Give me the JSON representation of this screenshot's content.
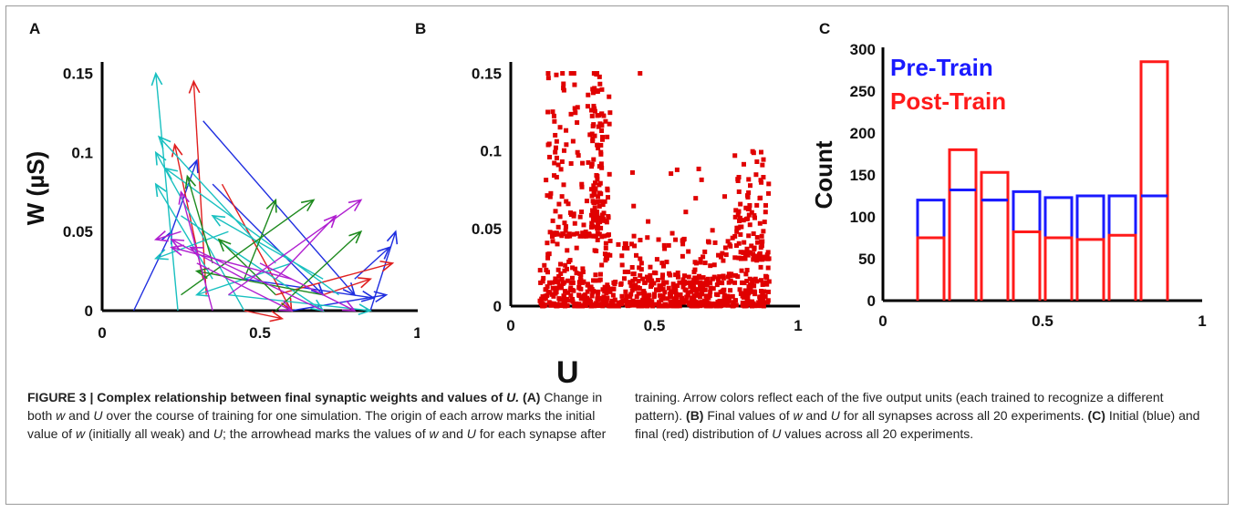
{
  "panels": {
    "a_label": "A",
    "b_label": "B",
    "c_label": "C"
  },
  "shared_xlabel": "U",
  "chart_data": [
    {
      "panel": "A",
      "type": "scatter",
      "ylabel": "W (µS)",
      "xlim": [
        0,
        1
      ],
      "ylim": [
        0,
        0.155
      ],
      "x_ticks": [
        "0",
        "0.5",
        "1"
      ],
      "y_ticks": [
        "0",
        "0.05",
        "0.1",
        "0.15"
      ],
      "arrows": [
        {
          "color": "#1f2ee0",
          "from": [
            0.1,
            0.0
          ],
          "to": [
            0.22,
            0.05
          ]
        },
        {
          "color": "#1f2ee0",
          "from": [
            0.22,
            0.05
          ],
          "to": [
            0.3,
            0.095
          ]
        },
        {
          "color": "#1f2ee0",
          "from": [
            0.85,
            0.0
          ],
          "to": [
            0.93,
            0.05
          ]
        },
        {
          "color": "#1f2ee0",
          "from": [
            0.8,
            0.02
          ],
          "to": [
            0.91,
            0.04
          ]
        },
        {
          "color": "#1f2ee0",
          "from": [
            0.6,
            0.0
          ],
          "to": [
            0.9,
            0.01
          ]
        },
        {
          "color": "#1f2ee0",
          "from": [
            0.45,
            0.02
          ],
          "to": [
            0.86,
            0.008
          ]
        },
        {
          "color": "#1f2ee0",
          "from": [
            0.32,
            0.12
          ],
          "to": [
            0.8,
            0.01
          ]
        },
        {
          "color": "#1f2ee0",
          "from": [
            0.35,
            0.08
          ],
          "to": [
            0.7,
            0.01
          ]
        },
        {
          "color": "#e01f1f",
          "from": [
            0.33,
            0.01
          ],
          "to": [
            0.29,
            0.145
          ]
        },
        {
          "color": "#e01f1f",
          "from": [
            0.32,
            0.02
          ],
          "to": [
            0.23,
            0.105
          ]
        },
        {
          "color": "#e01f1f",
          "from": [
            0.45,
            0.0
          ],
          "to": [
            0.57,
            -0.005
          ]
        },
        {
          "color": "#e01f1f",
          "from": [
            0.55,
            0.01
          ],
          "to": [
            0.92,
            0.03
          ]
        },
        {
          "color": "#e01f1f",
          "from": [
            0.38,
            0.08
          ],
          "to": [
            0.6,
            0.0
          ]
        },
        {
          "color": "#e01f1f",
          "from": [
            0.7,
            0.01
          ],
          "to": [
            0.85,
            0.02
          ]
        },
        {
          "color": "#19c0c0",
          "from": [
            0.24,
            0.0
          ],
          "to": [
            0.17,
            0.15
          ]
        },
        {
          "color": "#19c0c0",
          "from": [
            0.35,
            0.02
          ],
          "to": [
            0.17,
            0.08
          ]
        },
        {
          "color": "#19c0c0",
          "from": [
            0.4,
            0.05
          ],
          "to": [
            0.17,
            0.033
          ]
        },
        {
          "color": "#19c0c0",
          "from": [
            0.55,
            0.03
          ],
          "to": [
            0.18,
            0.11
          ]
        },
        {
          "color": "#19c0c0",
          "from": [
            0.45,
            0.0
          ],
          "to": [
            0.17,
            0.1
          ]
        },
        {
          "color": "#19c0c0",
          "from": [
            0.75,
            0.01
          ],
          "to": [
            0.2,
            0.09
          ]
        },
        {
          "color": "#19c0c0",
          "from": [
            0.7,
            0.02
          ],
          "to": [
            0.35,
            0.06
          ]
        },
        {
          "color": "#19c0c0",
          "from": [
            0.4,
            0.01
          ],
          "to": [
            0.85,
            0.0
          ]
        },
        {
          "color": "#19c0c0",
          "from": [
            0.25,
            0.06
          ],
          "to": [
            0.7,
            0.0
          ]
        },
        {
          "color": "#19c0c0",
          "from": [
            0.6,
            0.03
          ],
          "to": [
            0.3,
            0.01
          ]
        },
        {
          "color": "#1e8a1e",
          "from": [
            0.25,
            0.01
          ],
          "to": [
            0.67,
            0.07
          ]
        },
        {
          "color": "#1e8a1e",
          "from": [
            0.45,
            0.02
          ],
          "to": [
            0.55,
            0.07
          ]
        },
        {
          "color": "#1e8a1e",
          "from": [
            0.55,
            0.0
          ],
          "to": [
            0.82,
            0.05
          ]
        },
        {
          "color": "#1e8a1e",
          "from": [
            0.35,
            0.03
          ],
          "to": [
            0.27,
            0.085
          ]
        },
        {
          "color": "#1e8a1e",
          "from": [
            0.7,
            0.01
          ],
          "to": [
            0.3,
            0.025
          ]
        },
        {
          "color": "#1e8a1e",
          "from": [
            0.55,
            0.01
          ],
          "to": [
            0.37,
            0.045
          ]
        },
        {
          "color": "#b01fd0",
          "from": [
            0.25,
            0.05
          ],
          "to": [
            0.17,
            0.045
          ]
        },
        {
          "color": "#b01fd0",
          "from": [
            0.35,
            0.0
          ],
          "to": [
            0.25,
            0.075
          ]
        },
        {
          "color": "#b01fd0",
          "from": [
            0.45,
            0.02
          ],
          "to": [
            0.22,
            0.045
          ]
        },
        {
          "color": "#b01fd0",
          "from": [
            0.6,
            0.02
          ],
          "to": [
            0.22,
            0.04
          ]
        },
        {
          "color": "#b01fd0",
          "from": [
            0.7,
            0.0
          ],
          "to": [
            0.28,
            0.04
          ]
        },
        {
          "color": "#b01fd0",
          "from": [
            0.4,
            0.01
          ],
          "to": [
            0.82,
            0.07
          ]
        },
        {
          "color": "#b01fd0",
          "from": [
            0.55,
            0.02
          ],
          "to": [
            0.74,
            0.06
          ]
        },
        {
          "color": "#b01fd0",
          "from": [
            0.3,
            0.03
          ],
          "to": [
            0.6,
            0.0
          ]
        },
        {
          "color": "#b01fd0",
          "from": [
            0.5,
            0.03
          ],
          "to": [
            0.8,
            0.0
          ]
        }
      ]
    },
    {
      "panel": "B",
      "type": "scatter",
      "xlim": [
        0,
        1
      ],
      "ylim": [
        0,
        0.155
      ],
      "x_ticks": [
        "0",
        "0.5",
        "1"
      ],
      "y_ticks": [
        "0",
        "0.05",
        "0.1",
        "0.15"
      ],
      "color": "#e00000",
      "points_note": "",
      "clusters": [
        {
          "x_range": [
            0.1,
            0.9
          ],
          "y_range": [
            0.0,
            0.015
          ],
          "count": 520
        },
        {
          "x_range": [
            0.1,
            0.9
          ],
          "y_range": [
            0.015,
            0.045
          ],
          "count": 230
        },
        {
          "x_range": [
            0.12,
            0.35
          ],
          "y_range": [
            0.045,
            0.15
          ],
          "count": 140
        },
        {
          "x_range": [
            0.28,
            0.32
          ],
          "y_range": [
            0.05,
            0.15
          ],
          "count": 80
        },
        {
          "x_range": [
            0.78,
            0.9
          ],
          "y_range": [
            0.03,
            0.1
          ],
          "count": 90
        },
        {
          "x_range": [
            0.4,
            0.75
          ],
          "y_range": [
            0.04,
            0.09
          ],
          "count": 22
        }
      ],
      "extra_points": [
        [
          0.13,
          0.15
        ],
        [
          0.18,
          0.15
        ],
        [
          0.21,
          0.15
        ],
        [
          0.22,
          0.15
        ],
        [
          0.29,
          0.15
        ],
        [
          0.3,
          0.15
        ],
        [
          0.45,
          0.15
        ],
        [
          0.78,
          0.097
        ]
      ]
    },
    {
      "panel": "C",
      "type": "bar",
      "ylabel": "Count",
      "xlim": [
        0,
        1
      ],
      "ylim": [
        0,
        300
      ],
      "x_ticks": [
        "0",
        "0.5",
        "1"
      ],
      "y_ticks": [
        "0",
        "50",
        "100",
        "150",
        "200",
        "250",
        "300"
      ],
      "bin_edges": [
        0.1,
        0.2,
        0.3,
        0.4,
        0.5,
        0.6,
        0.7,
        0.8,
        0.9
      ],
      "series": [
        {
          "name": "Pre-Train",
          "color": "#1a1aff",
          "values": [
            120,
            132,
            120,
            130,
            123,
            125,
            125,
            125
          ]
        },
        {
          "name": "Post-Train",
          "color": "#ff1a1a",
          "values": [
            75,
            180,
            153,
            82,
            75,
            73,
            78,
            285
          ]
        }
      ]
    }
  ],
  "caption": {
    "figure_label": "FIGURE 3 | Complex relationship between final synaptic weights and values of ",
    "figure_label_u": "U.",
    "a_tag": "(A)",
    "a_text_1": " Change in both ",
    "w1": "w",
    "and1": " and ",
    "u1": "U",
    "a_text_2": " over the course of training for one simulation. The origin of each arrow marks the initial value of ",
    "w2": "w",
    "a_text_3": " (initially all weak) and ",
    "u2": "U",
    "a_text_4": "; the arrowhead marks the values of ",
    "w3": "w",
    "and2": " and ",
    "u3": "U",
    "a_text_5": " for each synapse after",
    "right_1": "training. Arrow colors reflect each of the five output units (each trained to recognize a different pattern). ",
    "b_tag": "(B)",
    "b_text_1": " Final values of ",
    "w4": "w",
    "and3": " and ",
    "u4": "U",
    "b_text_2": " for all synapses across all 20 experiments. ",
    "c_tag": "(C)",
    "c_text_1": " Initial (blue) and final (red) distribution of ",
    "u5": "U",
    "c_text_2": " values across all 20 experiments."
  }
}
